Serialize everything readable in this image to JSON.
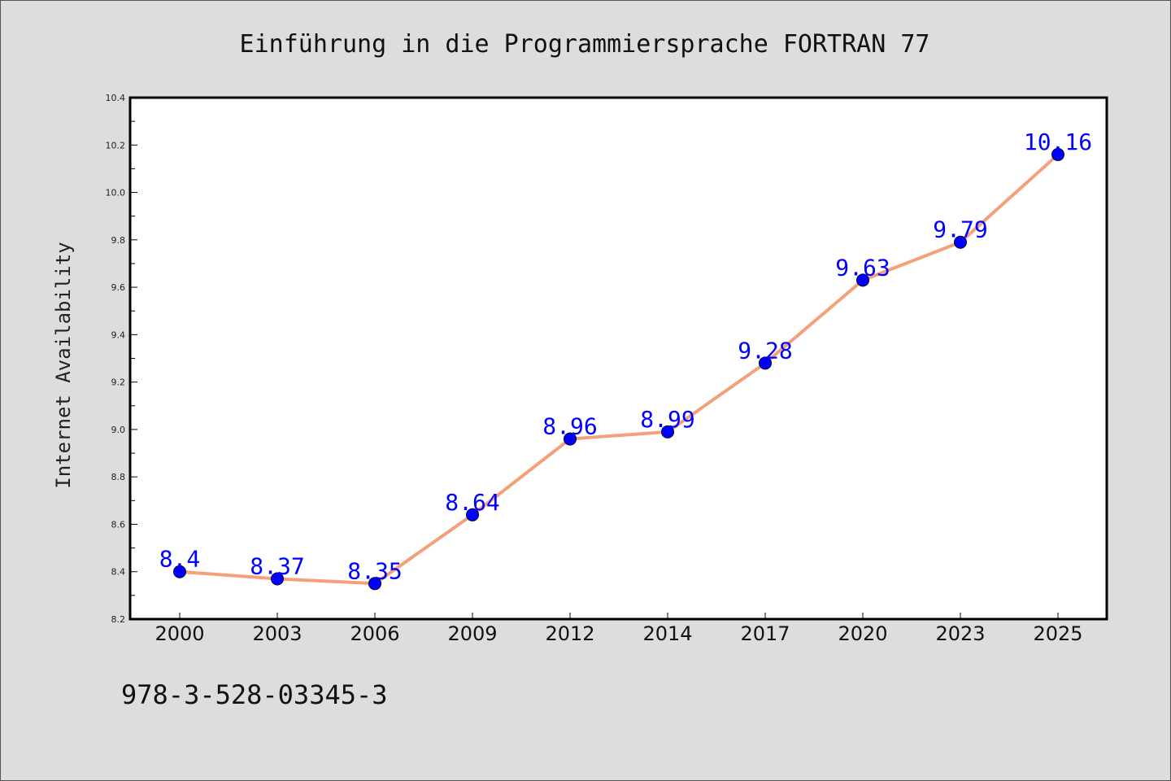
{
  "chart_data": {
    "type": "line",
    "title": "Einführung in die Programmiersprache FORTRAN 77",
    "xlabel": "",
    "ylabel": "Internet Availability",
    "categories": [
      "2000",
      "2003",
      "2006",
      "2009",
      "2012",
      "2014",
      "2017",
      "2020",
      "2023",
      "2025"
    ],
    "values": [
      8.4,
      8.37,
      8.35,
      8.64,
      8.96,
      8.99,
      9.28,
      9.63,
      9.79,
      10.16
    ],
    "data_labels": [
      "8.4",
      "8.37",
      "8.35",
      "8.64",
      "8.96",
      "8.99",
      "9.28",
      "9.63",
      "9.79",
      "10.16"
    ],
    "ylim": [
      8.2,
      10.4
    ],
    "yticks": [
      "8.2",
      "8.4",
      "8.6",
      "8.8",
      "9.0",
      "9.2",
      "9.4",
      "9.6",
      "9.8",
      "10.0",
      "10.2",
      "10.4"
    ],
    "grid": false,
    "legend": "none",
    "colors": {
      "line": "#f4a07a",
      "marker": "#0000ff",
      "label": "#0000ff",
      "figure_background": "#dddddd",
      "plot_background": "#ffffff"
    }
  },
  "footer": {
    "isbn": "978-3-528-03345-3"
  }
}
